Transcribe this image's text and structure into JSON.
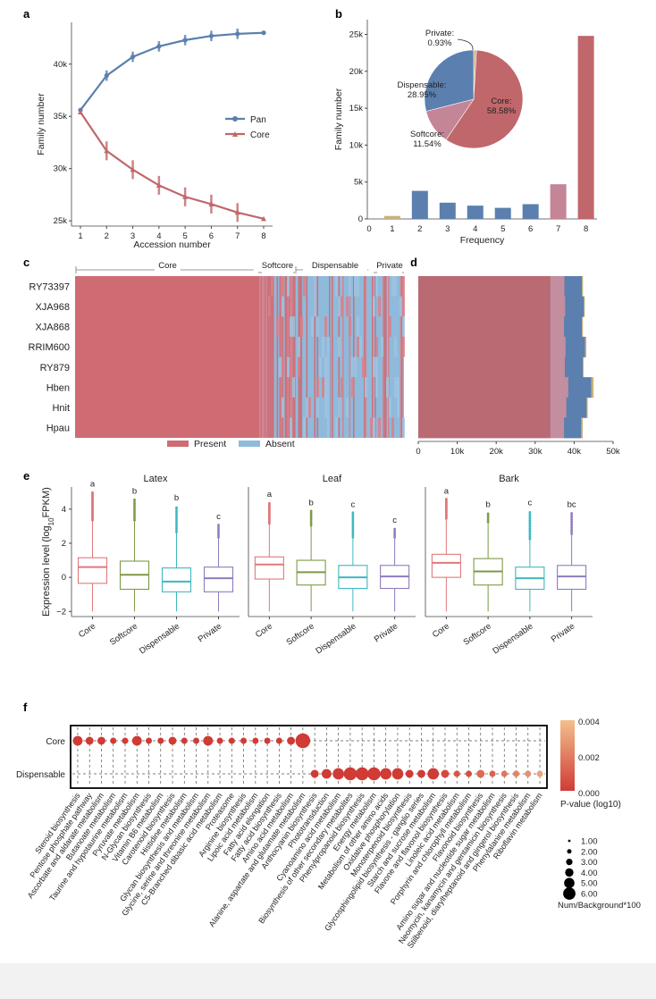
{
  "panel_labels": {
    "a": "a",
    "b": "b",
    "c": "c",
    "d": "d",
    "e": "e",
    "f": "f"
  },
  "chart_data": [
    {
      "id": "a",
      "type": "line",
      "xlabel": "Accession number",
      "ylabel": "Family number",
      "x": [
        1,
        2,
        3,
        4,
        5,
        6,
        7,
        8
      ],
      "xticks": [
        "1",
        "2",
        "3",
        "4",
        "5",
        "6",
        "7",
        "8"
      ],
      "yticks": [
        25000,
        30000,
        35000,
        40000
      ],
      "ytick_labels": [
        "25k",
        "30k",
        "35k",
        "40k"
      ],
      "ylim": [
        24500,
        44000
      ],
      "series": [
        {
          "name": "Pan",
          "color": "#5b7fae",
          "values": [
            35600,
            38900,
            40700,
            41700,
            42300,
            42700,
            42900,
            43000
          ]
        },
        {
          "name": "Core",
          "color": "#c0676b",
          "values": [
            35400,
            31700,
            29900,
            28400,
            27300,
            26600,
            25800,
            25200
          ]
        }
      ],
      "legend": [
        "Pan",
        "Core"
      ]
    },
    {
      "id": "b",
      "type": "bar",
      "xlabel": "Frequency",
      "ylabel": "Family number",
      "categories": [
        "1",
        "2",
        "3",
        "4",
        "5",
        "6",
        "7",
        "8"
      ],
      "values": [
        400,
        3800,
        2200,
        1800,
        1500,
        2000,
        4700,
        24800
      ],
      "colors": [
        "#c8b27a",
        "#5b7fae",
        "#5b7fae",
        "#5b7fae",
        "#5b7fae",
        "#5b7fae",
        "#c48597",
        "#c0676b"
      ],
      "ylim": [
        0,
        27000
      ],
      "yticks": [
        0,
        5000,
        10000,
        15000,
        20000,
        25000
      ],
      "ytick_labels": [
        "0",
        "5k",
        "10k",
        "15k",
        "20k",
        "25k"
      ],
      "xtick_extra": "0",
      "inset_pie": {
        "type": "pie",
        "slices": [
          {
            "label": "Core:",
            "pct": "58.58%",
            "value": 58.58,
            "color": "#c0676b"
          },
          {
            "label": "Softcore:",
            "pct": "11.54%",
            "value": 11.54,
            "color": "#c48597"
          },
          {
            "label": "Dispensable:",
            "pct": "28.95%",
            "value": 28.95,
            "color": "#5b7fae"
          },
          {
            "label": "Private:",
            "pct": "0.93%",
            "value": 0.93,
            "color": "#c8b27a"
          }
        ]
      }
    },
    {
      "id": "c",
      "type": "heatmap",
      "rows": [
        "RY73397",
        "XJA968",
        "XJA868",
        "RRIM600",
        "RY879",
        "Hben",
        "Hnit",
        "Hpau"
      ],
      "column_groups": [
        "Core",
        "Softcore",
        "Dispensable",
        "Private"
      ],
      "legend": [
        {
          "label": "Present",
          "color": "#cf6c73"
        },
        {
          "label": "Absent",
          "color": "#8fbadb"
        }
      ]
    },
    {
      "id": "d",
      "type": "bar",
      "orientation": "horizontal-stacked",
      "rows": [
        "RY73397",
        "XJA968",
        "XJA868",
        "RRIM600",
        "RY879",
        "Hben",
        "Hnit",
        "Hpau"
      ],
      "series": [
        {
          "name": "Core",
          "color": "#b96a72",
          "values": [
            33900,
            33900,
            33900,
            33900,
            33900,
            33900,
            33900,
            33900
          ]
        },
        {
          "name": "Softcore",
          "color": "#c28ea0",
          "values": [
            3600,
            3800,
            3500,
            3900,
            3700,
            4600,
            4100,
            3500
          ]
        },
        {
          "name": "Dispensable",
          "color": "#5b7fae",
          "values": [
            4500,
            4800,
            4600,
            5000,
            4600,
            5900,
            5200,
            4400
          ]
        },
        {
          "name": "Private",
          "color": "#c8b27a",
          "values": [
            200,
            150,
            180,
            260,
            170,
            520,
            210,
            330
          ]
        }
      ],
      "xlim": [
        0,
        50000
      ],
      "xticks": [
        0,
        10000,
        20000,
        30000,
        40000,
        50000
      ],
      "xtick_labels": [
        "0",
        "10k",
        "20k",
        "30k",
        "40k",
        "50k"
      ]
    },
    {
      "id": "e",
      "type": "boxplot",
      "ylabel": "Expression level (log10FPKM)",
      "ylabel_main": "Expression level (log",
      "ylabel_sub": "10",
      "ylabel_tail": "FPKM)",
      "ylim": [
        -2.3,
        5.3
      ],
      "yticks": [
        -2,
        0,
        2,
        4
      ],
      "ytick_labels": [
        "−2",
        "0",
        "2",
        "4"
      ],
      "categories": [
        "Core",
        "Softcore",
        "Dispensable",
        "Private"
      ],
      "colors": [
        "#e0787b",
        "#7d9a45",
        "#3fb7c0",
        "#8e7bbd"
      ],
      "panels": [
        {
          "title": "Latex",
          "letters": [
            "a",
            "b",
            "b",
            "c"
          ],
          "boxes": [
            {
              "q1": -0.35,
              "med": 0.6,
              "q3": 1.15,
              "lo": -2,
              "hi": 3.3,
              "outmax": 5.0
            },
            {
              "q1": -0.7,
              "med": 0.15,
              "q3": 0.95,
              "lo": -2,
              "hi": 3.3,
              "outmax": 4.6
            },
            {
              "q1": -0.85,
              "med": -0.25,
              "q3": 0.55,
              "lo": -2,
              "hi": 2.6,
              "outmax": 4.2
            },
            {
              "q1": -0.85,
              "med": -0.05,
              "q3": 0.6,
              "lo": -2,
              "hi": 2.3,
              "outmax": 3.1
            }
          ]
        },
        {
          "title": "Leaf",
          "letters": [
            "a",
            "b",
            "c",
            "c"
          ],
          "boxes": [
            {
              "q1": -0.1,
              "med": 0.75,
              "q3": 1.2,
              "lo": -2,
              "hi": 3.1,
              "outmax": 4.4
            },
            {
              "q1": -0.45,
              "med": 0.3,
              "q3": 1.0,
              "lo": -2,
              "hi": 3.0,
              "outmax": 3.9
            },
            {
              "q1": -0.65,
              "med": 0.0,
              "q3": 0.7,
              "lo": -2,
              "hi": 2.3,
              "outmax": 3.8
            },
            {
              "q1": -0.65,
              "med": 0.05,
              "q3": 0.7,
              "lo": -2,
              "hi": 2.3,
              "outmax": 2.9
            }
          ]
        },
        {
          "title": "Bark",
          "letters": [
            "a",
            "b",
            "c",
            "bc"
          ],
          "boxes": [
            {
              "q1": 0.0,
              "med": 0.85,
              "q3": 1.35,
              "lo": -2,
              "hi": 3.4,
              "outmax": 4.6
            },
            {
              "q1": -0.45,
              "med": 0.35,
              "q3": 1.1,
              "lo": -2,
              "hi": 3.2,
              "outmax": 3.8
            },
            {
              "q1": -0.7,
              "med": -0.05,
              "q3": 0.6,
              "lo": -2,
              "hi": 2.2,
              "outmax": 3.9
            },
            {
              "q1": -0.7,
              "med": 0.05,
              "q3": 0.7,
              "lo": -2,
              "hi": 2.5,
              "outmax": 3.8
            }
          ]
        }
      ]
    },
    {
      "id": "f",
      "type": "scatter",
      "subtype": "dot-plot",
      "rows": [
        "Core",
        "Dispensable"
      ],
      "pathways": [
        "Steroid biosynthesis",
        "Pentose phosphate pathway",
        "Ascorbate and aldarate metabolism",
        "Butanoate metabolism",
        "Taurine and hypotaurine metabolism",
        "Pyruvate metabolism",
        "N-Glycan biosynthesis",
        "Vitamin B6 metabolism",
        "Carotenoid biosynthesis",
        "Histidine metabolism",
        "Glycan biosynthesis and metabolism",
        "Glycine, serine and threonine metabolism",
        "C5-Branched dibasic acid metabolism",
        "Proteasome",
        "Arginine biosynthesis",
        "Lipoic acid metabolism",
        "Fatty acid elongation",
        "Fatty acid biosynthesis",
        "Amino acid metabolism",
        "Alanine, aspartate and glutamate metabolism",
        "Anthocyanin biosynthesis",
        "Phototransduction",
        "Cyanoamino acid metabolism",
        "Biosynthesis of other secondary metabolites",
        "Phenylpropanoid biosynthesis",
        "Energy metabolism",
        "Metabolism of other amino acids",
        "Oxidative phosphorylation",
        "Monoterpenoid biosynthesis",
        "Glycosphingolipid biosynthesis - ganglio series",
        "Starch and sucrose metabolism",
        "Flavone and flavonol biosynthesis",
        "Linoleic acid metabolism",
        "Porphyrin and chlorophyll metabolism",
        "Flavonoid biosynthesis",
        "Amino sugar and nucleotide sugar metabolism",
        "Neomycin, kanamycin and gentamicin biosynthesis",
        "Stilbenoid, diarylheptanoid and gingerol biosynthesis",
        "Phenylalanine metabolism",
        "Riboflavin metabolism"
      ],
      "core_sizes": [
        2,
        1.5,
        1.5,
        1,
        1,
        2,
        1,
        1,
        1.5,
        1,
        1,
        2,
        1,
        1,
        1,
        1,
        1,
        1,
        1.5,
        3.5,
        0,
        0,
        0,
        0,
        0,
        0,
        0,
        0,
        0,
        0,
        0,
        0,
        0,
        0,
        0,
        0,
        0,
        0,
        0,
        0
      ],
      "core_p": [
        0,
        0,
        0,
        0,
        0,
        0,
        0,
        0,
        0,
        0,
        0,
        0,
        0,
        0,
        0,
        0,
        0,
        0,
        0,
        0,
        0,
        0,
        0,
        0,
        0,
        0,
        0,
        0,
        0,
        0,
        0,
        0,
        0,
        0,
        0,
        0,
        0,
        0,
        0,
        0
      ],
      "disp_sizes": [
        0,
        0,
        0,
        0,
        0,
        0,
        0,
        0,
        0,
        0,
        0,
        0,
        0,
        0,
        0,
        0,
        0,
        0,
        0,
        0,
        1.5,
        2,
        2.5,
        3,
        3,
        3,
        2.5,
        2.5,
        1.5,
        1.5,
        2.5,
        1.5,
        1,
        1,
        1.5,
        1,
        1,
        1,
        1,
        1
      ],
      "disp_p": [
        0,
        0,
        0,
        0,
        0,
        0,
        0,
        0,
        0,
        0,
        0,
        0,
        0,
        0,
        0,
        0,
        0,
        0,
        0,
        0,
        0,
        0,
        0,
        0,
        0,
        0,
        0,
        0,
        0,
        0,
        0,
        0.0004,
        0.0008,
        0.0006,
        0.0014,
        0.0012,
        0.0018,
        0.0022,
        0.0026,
        0.0032
      ],
      "pvalue_legend": {
        "title": "P-value (log10)",
        "ticks": [
          "0.004",
          "0.002",
          "0.000"
        ],
        "low_color": "#d03b35",
        "high_color": "#f3c08c"
      },
      "size_legend": {
        "title": "Num/Background*100",
        "values": [
          "1.00",
          "2.00",
          "3.00",
          "4.00",
          "5.00",
          "6.00"
        ]
      }
    }
  ]
}
